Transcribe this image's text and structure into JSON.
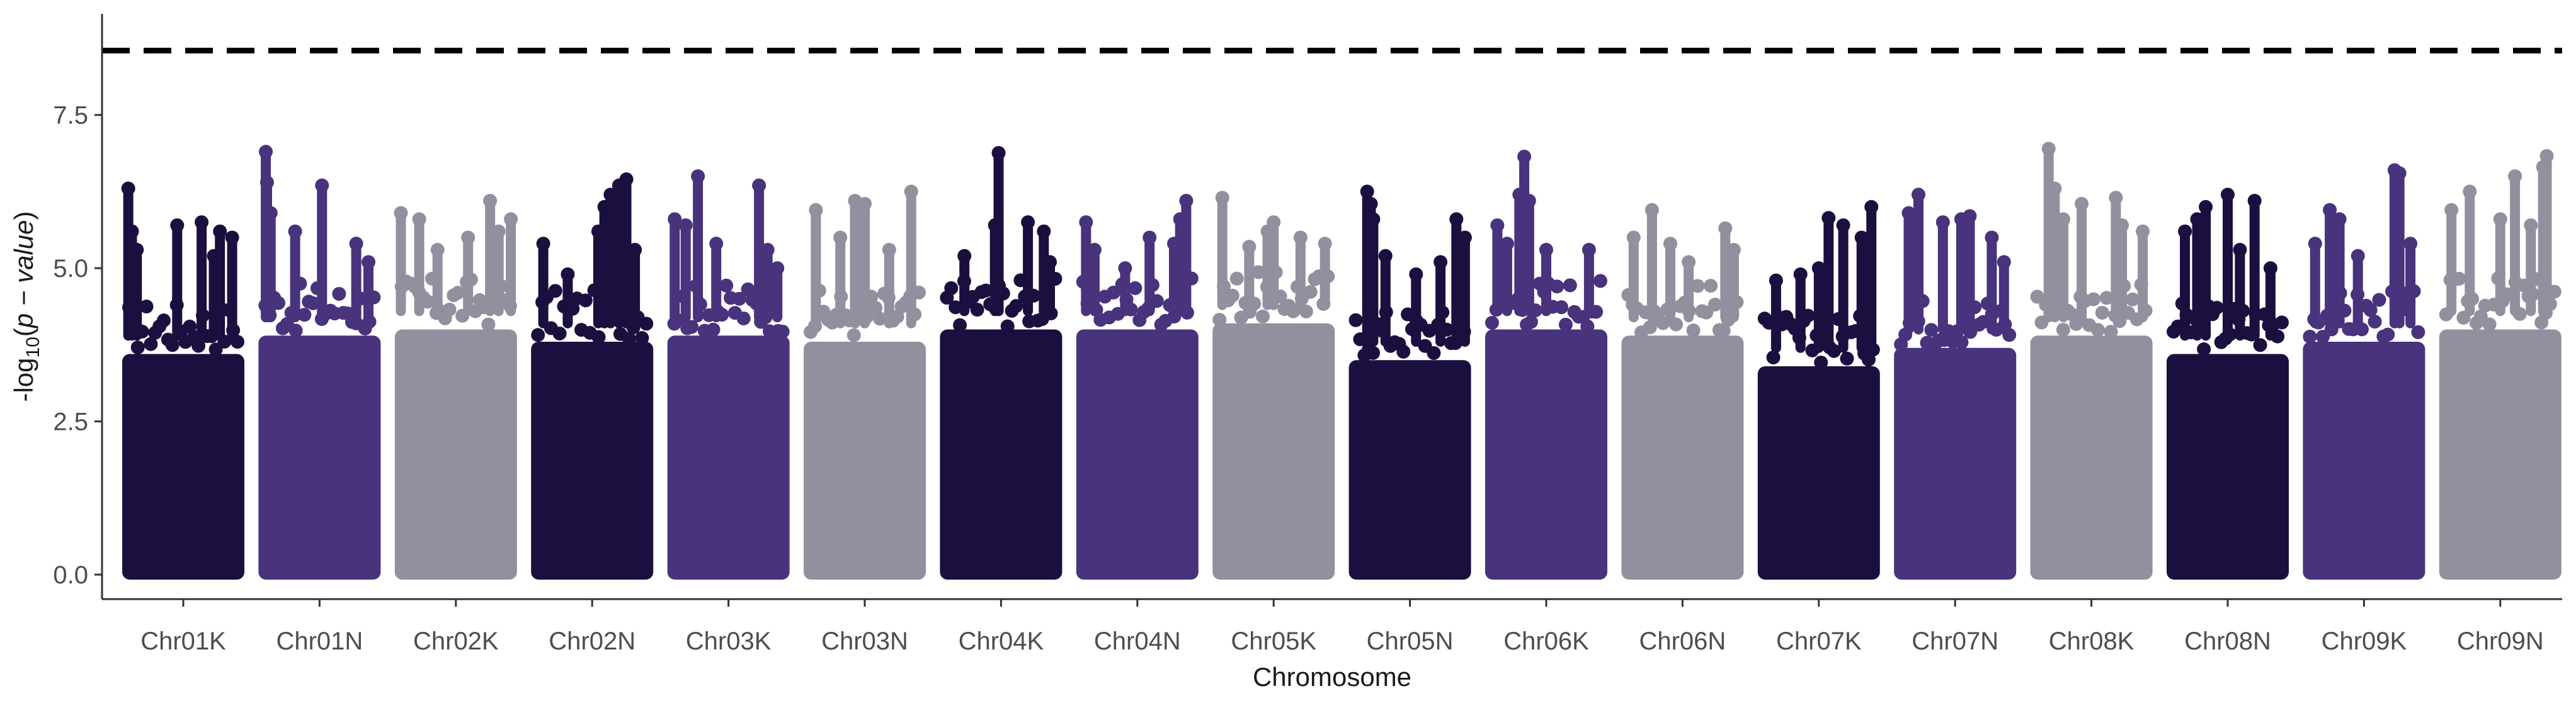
{
  "chart_data": {
    "type": "scatter",
    "subtype": "manhattan",
    "title": "",
    "xlabel": "Chromosome",
    "ylabel": {
      "prefix": "-log",
      "sub": "10",
      "open": "(",
      "var": "p − value",
      "close": ")"
    },
    "ylim": [
      -0.4,
      9.15
    ],
    "yticks": [
      0.0,
      2.5,
      5.0,
      7.5
    ],
    "ytick_labels": [
      "0.0",
      "2.5",
      "5.0",
      "7.5"
    ],
    "threshold": 8.55,
    "threshold_style": "dashed",
    "grid": false,
    "legend": "none",
    "colors": [
      "#1b0f3f",
      "#48337c",
      "#938f9e"
    ],
    "categories": [
      "Chr01K",
      "Chr01N",
      "Chr02K",
      "Chr02N",
      "Chr03K",
      "Chr03N",
      "Chr04K",
      "Chr04N",
      "Chr05K",
      "Chr05N",
      "Chr06K",
      "Chr06N",
      "Chr07K",
      "Chr07N",
      "Chr08K",
      "Chr08N",
      "Chr09K",
      "Chr09N"
    ],
    "chromosomes": [
      {
        "name": "Chr01K",
        "color": "#1b0f3f",
        "band_top": 4.2,
        "peaks": [
          [
            0.05,
            6.3
          ],
          [
            0.08,
            5.6
          ],
          [
            0.12,
            5.3
          ],
          [
            0.45,
            5.7
          ],
          [
            0.65,
            5.75
          ],
          [
            0.8,
            5.6
          ],
          [
            0.9,
            5.5
          ],
          [
            0.75,
            5.2
          ]
        ]
      },
      {
        "name": "Chr01N",
        "color": "#48337c",
        "band_top": 4.5,
        "peaks": [
          [
            0.06,
            6.9
          ],
          [
            0.07,
            6.4
          ],
          [
            0.1,
            5.9
          ],
          [
            0.3,
            5.6
          ],
          [
            0.52,
            6.35
          ],
          [
            0.8,
            5.4
          ],
          [
            0.9,
            5.1
          ]
        ]
      },
      {
        "name": "Chr02K",
        "color": "#938f9e",
        "band_top": 4.6,
        "peaks": [
          [
            0.05,
            5.9
          ],
          [
            0.2,
            5.8
          ],
          [
            0.35,
            5.3
          ],
          [
            0.6,
            5.5
          ],
          [
            0.78,
            6.1
          ],
          [
            0.85,
            5.6
          ],
          [
            0.95,
            5.8
          ]
        ]
      },
      {
        "name": "Chr02N",
        "color": "#1b0f3f",
        "band_top": 4.4,
        "peaks": [
          [
            0.1,
            5.4
          ],
          [
            0.3,
            4.9
          ],
          [
            0.55,
            5.6
          ],
          [
            0.6,
            6.0
          ],
          [
            0.65,
            6.2
          ],
          [
            0.72,
            6.35
          ],
          [
            0.78,
            6.45
          ],
          [
            0.85,
            5.3
          ]
        ]
      },
      {
        "name": "Chr03K",
        "color": "#48337c",
        "band_top": 4.5,
        "peaks": [
          [
            0.06,
            5.8
          ],
          [
            0.15,
            5.7
          ],
          [
            0.25,
            6.5
          ],
          [
            0.4,
            5.4
          ],
          [
            0.75,
            6.35
          ],
          [
            0.82,
            5.3
          ],
          [
            0.9,
            5.0
          ]
        ]
      },
      {
        "name": "Chr03N",
        "color": "#938f9e",
        "band_top": 4.4,
        "peaks": [
          [
            0.1,
            5.95
          ],
          [
            0.3,
            5.5
          ],
          [
            0.42,
            6.1
          ],
          [
            0.5,
            6.05
          ],
          [
            0.88,
            6.25
          ],
          [
            0.7,
            5.3
          ]
        ]
      },
      {
        "name": "Chr04K",
        "color": "#1b0f3f",
        "band_top": 4.6,
        "peaks": [
          [
            0.2,
            5.2
          ],
          [
            0.45,
            5.7
          ],
          [
            0.48,
            6.88
          ],
          [
            0.72,
            5.75
          ],
          [
            0.85,
            5.6
          ],
          [
            0.9,
            5.1
          ]
        ]
      },
      {
        "name": "Chr04N",
        "color": "#48337c",
        "band_top": 4.6,
        "peaks": [
          [
            0.08,
            5.75
          ],
          [
            0.15,
            5.3
          ],
          [
            0.4,
            5.0
          ],
          [
            0.6,
            5.5
          ],
          [
            0.8,
            5.4
          ],
          [
            0.85,
            5.8
          ],
          [
            0.9,
            6.1
          ]
        ]
      },
      {
        "name": "Chr05K",
        "color": "#938f9e",
        "band_top": 4.7,
        "peaks": [
          [
            0.08,
            6.15
          ],
          [
            0.3,
            5.35
          ],
          [
            0.45,
            5.6
          ],
          [
            0.5,
            5.75
          ],
          [
            0.72,
            5.5
          ],
          [
            0.92,
            5.4
          ]
        ]
      },
      {
        "name": "Chr05N",
        "color": "#1b0f3f",
        "band_top": 4.1,
        "peaks": [
          [
            0.15,
            6.25
          ],
          [
            0.18,
            6.05
          ],
          [
            0.2,
            5.8
          ],
          [
            0.3,
            5.2
          ],
          [
            0.55,
            4.9
          ],
          [
            0.75,
            5.1
          ],
          [
            0.88,
            5.8
          ],
          [
            0.95,
            5.5
          ]
        ]
      },
      {
        "name": "Chr06K",
        "color": "#48337c",
        "band_top": 4.6,
        "peaks": [
          [
            0.1,
            5.7
          ],
          [
            0.18,
            5.4
          ],
          [
            0.28,
            6.2
          ],
          [
            0.32,
            6.82
          ],
          [
            0.36,
            6.1
          ],
          [
            0.5,
            5.3
          ],
          [
            0.85,
            5.3
          ]
        ]
      },
      {
        "name": "Chr06N",
        "color": "#938f9e",
        "band_top": 4.5,
        "peaks": [
          [
            0.1,
            5.5
          ],
          [
            0.25,
            5.95
          ],
          [
            0.4,
            5.4
          ],
          [
            0.55,
            5.1
          ],
          [
            0.85,
            5.65
          ],
          [
            0.92,
            5.3
          ]
        ]
      },
      {
        "name": "Chr07K",
        "color": "#1b0f3f",
        "band_top": 4.0,
        "peaks": [
          [
            0.15,
            4.8
          ],
          [
            0.35,
            4.9
          ],
          [
            0.5,
            5.0
          ],
          [
            0.58,
            5.82
          ],
          [
            0.7,
            5.7
          ],
          [
            0.85,
            5.5
          ],
          [
            0.93,
            6.0
          ]
        ]
      },
      {
        "name": "Chr07N",
        "color": "#48337c",
        "band_top": 4.3,
        "peaks": [
          [
            0.12,
            5.9
          ],
          [
            0.2,
            6.2
          ],
          [
            0.4,
            5.75
          ],
          [
            0.55,
            5.8
          ],
          [
            0.62,
            5.85
          ],
          [
            0.8,
            5.5
          ],
          [
            0.9,
            5.1
          ]
        ]
      },
      {
        "name": "Chr08K",
        "color": "#938f9e",
        "band_top": 4.5,
        "peaks": [
          [
            0.15,
            6.95
          ],
          [
            0.2,
            6.3
          ],
          [
            0.27,
            5.8
          ],
          [
            0.42,
            6.05
          ],
          [
            0.7,
            6.15
          ],
          [
            0.75,
            5.7
          ],
          [
            0.92,
            5.6
          ]
        ]
      },
      {
        "name": "Chr08N",
        "color": "#1b0f3f",
        "band_top": 4.2,
        "peaks": [
          [
            0.15,
            5.6
          ],
          [
            0.25,
            5.8
          ],
          [
            0.32,
            6.0
          ],
          [
            0.5,
            6.2
          ],
          [
            0.6,
            5.3
          ],
          [
            0.72,
            6.1
          ],
          [
            0.85,
            5.0
          ]
        ]
      },
      {
        "name": "Chr09K",
        "color": "#48337c",
        "band_top": 4.4,
        "peaks": [
          [
            0.1,
            5.4
          ],
          [
            0.22,
            5.95
          ],
          [
            0.3,
            5.8
          ],
          [
            0.45,
            5.2
          ],
          [
            0.75,
            6.6
          ],
          [
            0.79,
            6.55
          ],
          [
            0.88,
            5.4
          ]
        ]
      },
      {
        "name": "Chr09N",
        "color": "#938f9e",
        "band_top": 4.6,
        "peaks": [
          [
            0.1,
            5.95
          ],
          [
            0.25,
            6.25
          ],
          [
            0.5,
            5.8
          ],
          [
            0.62,
            6.5
          ],
          [
            0.75,
            5.7
          ],
          [
            0.85,
            6.65
          ],
          [
            0.88,
            6.83
          ]
        ]
      }
    ]
  }
}
